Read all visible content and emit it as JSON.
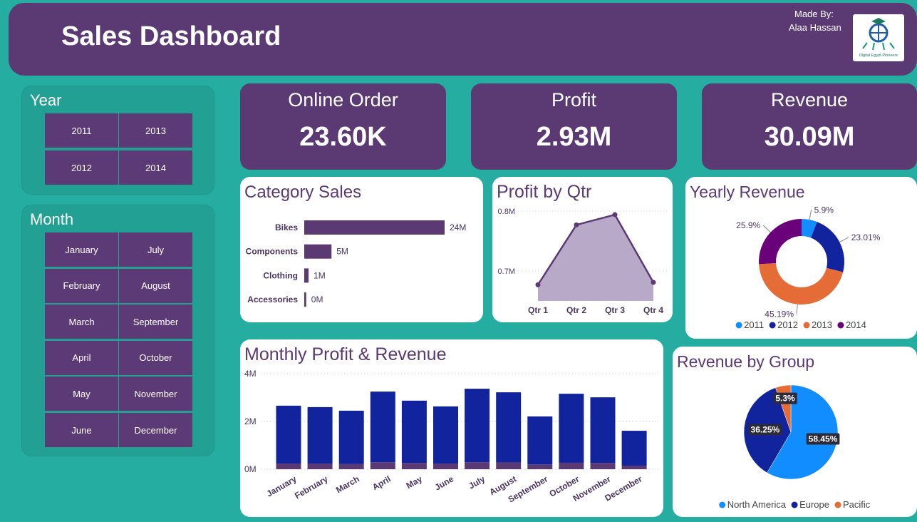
{
  "header": {
    "title": "Sales Dashboard",
    "made_by": "Made By:",
    "author": "Alaa Hassan",
    "logo_text": "Digital Egypt Pioneers"
  },
  "slicers": [
    {
      "title": "Year",
      "items": [
        "2011",
        "2013",
        "2012",
        "2014"
      ]
    },
    {
      "title": "Month",
      "items": [
        "January",
        "July",
        "February",
        "August",
        "March",
        "September",
        "April",
        "October",
        "May",
        "November",
        "June",
        "December"
      ]
    }
  ],
  "cards": [
    {
      "label": "Online Order",
      "value": "23.60K"
    },
    {
      "label": "Profit",
      "value": "2.93M"
    },
    {
      "label": "Revenue",
      "value": "30.09M"
    }
  ],
  "chart_data": [
    {
      "type": "hbar",
      "title": "Category Sales",
      "categories": [
        "Bikes",
        "Components",
        "Clothing",
        "Accessories"
      ],
      "values": [
        24.2,
        4.7,
        0.75,
        0.34
      ],
      "value_labels": [
        "24M",
        "5M",
        "1M",
        "0M"
      ],
      "color": "#5B3A74"
    },
    {
      "type": "area",
      "title": "Profit by Qtr",
      "categories": [
        "Qtr 1",
        "Qtr 2",
        "Qtr 3",
        "Qtr 4"
      ],
      "values": [
        0.677,
        0.777,
        0.794,
        0.681
      ],
      "color": "#5B3A74",
      "fill": "#B9A9C9",
      "ylim": [
        0.65,
        0.81
      ],
      "yticks": [
        {
          "value": 0.7,
          "label": "0.7M"
        },
        {
          "value": 0.8,
          "label": "0.8M"
        }
      ],
      "grid": true
    },
    {
      "type": "donut",
      "title": "Yearly Revenue",
      "categories": [
        "2011",
        "2012",
        "2013",
        "2014"
      ],
      "values": [
        5.9,
        23.01,
        45.19,
        25.9
      ],
      "value_labels": [
        "5.9%",
        "23.01%",
        "45.19%",
        "25.9%"
      ],
      "colors": [
        "#118DFF",
        "#12239E",
        "#E66C37",
        "#6B007B"
      ],
      "legend": "bottom"
    },
    {
      "type": "stacked_bar",
      "title": "Monthly Profit & Revenue",
      "categories": [
        "January",
        "February",
        "March",
        "April",
        "May",
        "June",
        "July",
        "August",
        "September",
        "October",
        "November",
        "December"
      ],
      "series": [
        {
          "color": "#5B3A74",
          "values": [
            0.24,
            0.24,
            0.22,
            0.29,
            0.26,
            0.24,
            0.29,
            0.28,
            0.2,
            0.27,
            0.26,
            0.15
          ]
        },
        {
          "color": "#12239E",
          "values": [
            2.42,
            2.36,
            2.23,
            2.96,
            2.61,
            2.39,
            3.08,
            2.94,
            2.01,
            2.89,
            2.75,
            1.46
          ]
        }
      ],
      "ylim": [
        0,
        4
      ],
      "yticks": [
        {
          "value": 0,
          "label": "0M"
        },
        {
          "value": 2,
          "label": "2M"
        },
        {
          "value": 4,
          "label": "4M"
        }
      ],
      "grid": true
    },
    {
      "type": "pie",
      "title": "Revenue by Group",
      "categories": [
        "North America",
        "Europe",
        "Pacific"
      ],
      "values": [
        58.45,
        36.25,
        5.3
      ],
      "value_labels": [
        "58.45%",
        "36.25%",
        "5.3%"
      ],
      "colors": [
        "#118DFF",
        "#12239E",
        "#E66C37"
      ],
      "legend": "bottom"
    }
  ]
}
